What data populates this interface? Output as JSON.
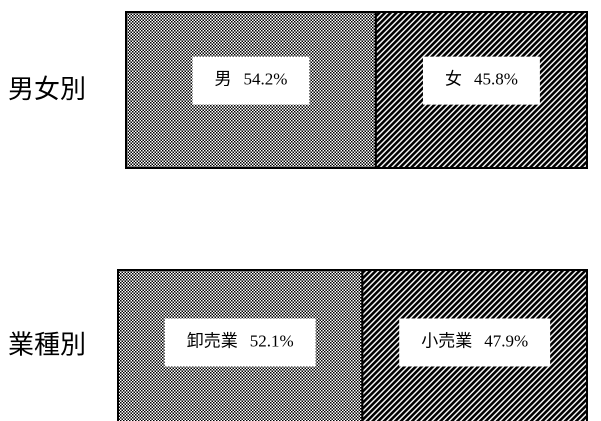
{
  "chart_data": [
    {
      "type": "bar",
      "title": "男女別",
      "categories": [
        "男",
        "女"
      ],
      "values": [
        54.2,
        45.8
      ],
      "value_labels": [
        "54.2%",
        "45.8%"
      ]
    },
    {
      "type": "bar",
      "title": "業種別",
      "categories": [
        "卸売業",
        "小売業"
      ],
      "values": [
        52.1,
        47.9
      ],
      "value_labels": [
        "52.1%",
        "47.9%"
      ]
    }
  ]
}
